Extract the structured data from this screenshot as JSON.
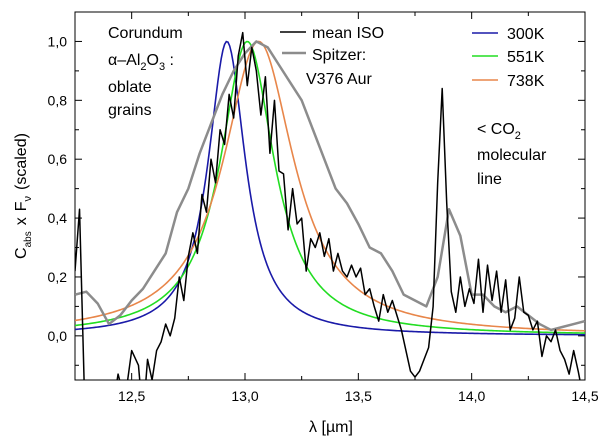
{
  "chart_data": {
    "type": "line",
    "xlabel": "λ [µm]",
    "ylabel": "C_abs x F_ν (scaled)",
    "ylabel_parts": {
      "c": "C",
      "abs": "abs",
      "x": "x",
      "f": "F",
      "nu": "ν",
      "rest": "(scaled)"
    },
    "xlim": [
      12.25,
      14.5
    ],
    "ylim": [
      -0.15,
      1.1
    ],
    "x_ticks": [
      "12,5",
      "13,0",
      "13,5",
      "14,0",
      "14,5"
    ],
    "x_tick_values": [
      12.5,
      13.0,
      13.5,
      14.0,
      14.5
    ],
    "y_ticks": [
      "0,0",
      "0,2",
      "0,4",
      "0,6",
      "0,8",
      "1,0"
    ],
    "y_tick_values": [
      0.0,
      0.2,
      0.4,
      0.6,
      0.8,
      1.0
    ],
    "annotations": {
      "material": {
        "line1": "Corundum",
        "alpha": "α–Al",
        "sub2": "2",
        "o": "O",
        "sub3": "3",
        "colon": " :",
        "line3": "oblate",
        "line4": "grains"
      },
      "co2": {
        "lt": "< CO",
        "sub": "2",
        "line2": "molecular",
        "line3": "line"
      }
    },
    "legend_left": {
      "iso": "mean ISO",
      "spitzer1": "Spitzer:",
      "spitzer2": "V376 Aur"
    },
    "legend_right": [
      "300K",
      "551K",
      "738K"
    ],
    "colors": {
      "iso": "#000000",
      "spitzer": "#8c8c8c",
      "k300": "#1a1aa8",
      "k551": "#22dd22",
      "k738": "#e8864a"
    },
    "series": [
      {
        "name": "mean ISO",
        "color": "#000000",
        "x": [
          12.25,
          12.27,
          12.29,
          12.32,
          12.35,
          12.38,
          12.41,
          12.44,
          12.47,
          12.5,
          12.53,
          12.55,
          12.57,
          12.59,
          12.61,
          12.63,
          12.65,
          12.67,
          12.69,
          12.71,
          12.73,
          12.75,
          12.77,
          12.79,
          12.81,
          12.83,
          12.85,
          12.87,
          12.89,
          12.91,
          12.93,
          12.95,
          12.97,
          12.99,
          13.01,
          13.03,
          13.05,
          13.07,
          13.09,
          13.11,
          13.13,
          13.15,
          13.17,
          13.19,
          13.21,
          13.23,
          13.25,
          13.27,
          13.29,
          13.31,
          13.33,
          13.35,
          13.37,
          13.39,
          13.41,
          13.43,
          13.45,
          13.47,
          13.49,
          13.51,
          13.53,
          13.55,
          13.57,
          13.59,
          13.61,
          13.63,
          13.65,
          13.67,
          13.69,
          13.71,
          13.73,
          13.75,
          13.77,
          13.79,
          13.81,
          13.83,
          13.85,
          13.87,
          13.89,
          13.91,
          13.93,
          13.95,
          13.97,
          13.99,
          14.01,
          14.03,
          14.05,
          14.07,
          14.09,
          14.11,
          14.13,
          14.15,
          14.17,
          14.19,
          14.21,
          14.23,
          14.25,
          14.27,
          14.29,
          14.31,
          14.33,
          14.35,
          14.37,
          14.39,
          14.41,
          14.43,
          14.45,
          14.47,
          14.49
        ],
        "y": [
          0.22,
          0.43,
          -0.15,
          -0.3,
          -0.3,
          -0.25,
          -0.28,
          -0.13,
          -0.22,
          -0.05,
          -0.1,
          -0.28,
          -0.08,
          -0.15,
          -0.05,
          -0.02,
          0.04,
          0.0,
          0.06,
          0.2,
          0.12,
          0.27,
          0.35,
          0.28,
          0.48,
          0.42,
          0.6,
          0.52,
          0.7,
          0.65,
          0.82,
          0.74,
          0.95,
          1.03,
          0.85,
          0.98,
          0.9,
          0.75,
          0.88,
          0.62,
          0.8,
          0.56,
          0.55,
          0.36,
          0.5,
          0.38,
          0.4,
          0.22,
          0.33,
          0.3,
          0.35,
          0.27,
          0.33,
          0.22,
          0.28,
          0.22,
          0.2,
          0.24,
          0.2,
          0.23,
          0.14,
          0.16,
          0.1,
          0.05,
          0.14,
          0.08,
          0.12,
          0.07,
          0.02,
          -0.05,
          -0.12,
          -0.14,
          -0.12,
          -0.08,
          -0.04,
          0.1,
          0.52,
          0.84,
          0.45,
          0.15,
          0.08,
          0.2,
          0.1,
          0.16,
          0.11,
          0.26,
          0.08,
          0.24,
          0.12,
          0.22,
          0.08,
          0.19,
          0.02,
          0.06,
          0.2,
          0.08,
          0.07,
          0.02,
          0.05,
          -0.07,
          0.0,
          -0.02,
          0.02,
          -0.05,
          -0.08,
          -0.13,
          -0.05,
          -0.12,
          -0.2
        ]
      },
      {
        "name": "Spitzer: V376 Aur",
        "color": "#8c8c8c",
        "x": [
          12.25,
          12.3,
          12.35,
          12.4,
          12.45,
          12.5,
          12.55,
          12.6,
          12.65,
          12.7,
          12.75,
          12.8,
          12.85,
          12.9,
          12.95,
          13.0,
          13.05,
          13.1,
          13.15,
          13.2,
          13.25,
          13.3,
          13.35,
          13.4,
          13.45,
          13.5,
          13.55,
          13.6,
          13.65,
          13.7,
          13.75,
          13.8,
          13.85,
          13.9,
          13.95,
          14.0,
          14.05,
          14.1,
          14.15,
          14.2,
          14.25,
          14.3,
          14.35,
          14.4,
          14.45,
          14.5
        ],
        "y": [
          0.14,
          0.15,
          0.11,
          0.04,
          0.07,
          0.12,
          0.16,
          0.22,
          0.28,
          0.42,
          0.5,
          0.62,
          0.72,
          0.82,
          0.9,
          0.96,
          1.0,
          0.98,
          0.92,
          0.86,
          0.8,
          0.7,
          0.6,
          0.5,
          0.45,
          0.38,
          0.3,
          0.28,
          0.22,
          0.14,
          0.12,
          0.1,
          0.2,
          0.43,
          0.34,
          0.14,
          0.14,
          0.1,
          0.08,
          0.1,
          0.07,
          0.04,
          0.02,
          0.03,
          0.04,
          0.05
        ]
      }
    ],
    "models": [
      {
        "name": "300K",
        "color": "#1a1aa8",
        "center": 12.92,
        "width": 0.1
      },
      {
        "name": "551K",
        "color": "#22dd22",
        "center": 13.01,
        "width": 0.145
      },
      {
        "name": "738K",
        "color": "#e8864a",
        "center": 13.06,
        "width": 0.19
      }
    ]
  }
}
